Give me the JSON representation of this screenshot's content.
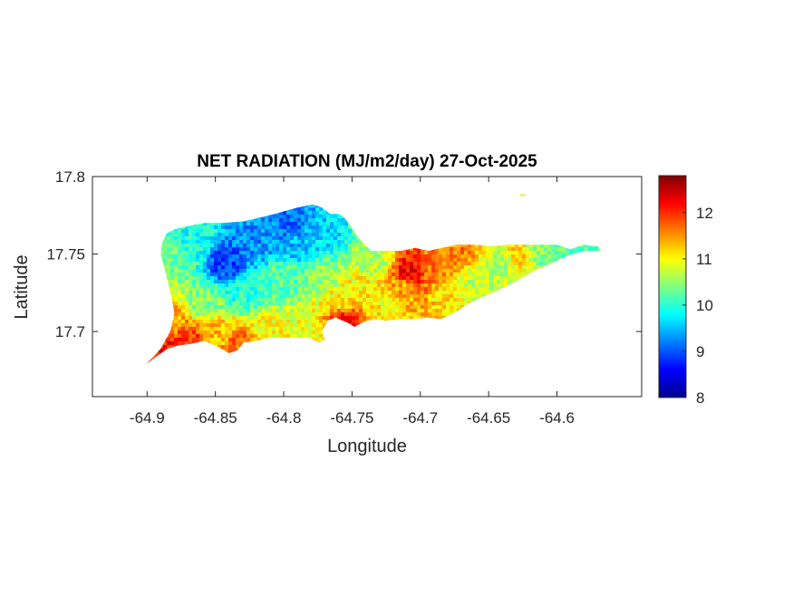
{
  "chart_data": {
    "type": "heatmap",
    "title": "NET RADIATION (MJ/m2/day) 27-Oct-2025",
    "xlabel": "Longitude",
    "ylabel": "Latitude",
    "xlim": [
      -64.94,
      -64.538
    ],
    "ylim": [
      17.658,
      17.8
    ],
    "xticks": [
      -64.9,
      -64.85,
      -64.8,
      -64.75,
      -64.7,
      -64.65,
      -64.6
    ],
    "yticks": [
      17.7,
      17.75,
      17.8
    ],
    "xtick_labels": [
      "-64.9",
      "-64.85",
      "-64.8",
      "-64.75",
      "-64.7",
      "-64.65",
      "-64.6"
    ],
    "ytick_labels": [
      "17.7",
      "17.75",
      "17.8"
    ],
    "colorbar": {
      "label": "",
      "range": [
        8,
        12.8
      ],
      "ticks": [
        8,
        9,
        10,
        11,
        12
      ],
      "tick_labels": [
        "8",
        "9",
        "10",
        "11",
        "12"
      ],
      "colormap": "jet",
      "colors": [
        "#00008f",
        "#0000ff",
        "#00ffff",
        "#ffff00",
        "#ff0000",
        "#800000"
      ]
    },
    "grid": false,
    "island_outline_lonlat": [
      [
        -64.901,
        17.679
      ],
      [
        -64.893,
        17.684
      ],
      [
        -64.885,
        17.689
      ],
      [
        -64.877,
        17.691
      ],
      [
        -64.868,
        17.692
      ],
      [
        -64.858,
        17.694
      ],
      [
        -64.848,
        17.69
      ],
      [
        -64.84,
        17.686
      ],
      [
        -64.834,
        17.688
      ],
      [
        -64.829,
        17.693
      ],
      [
        -64.82,
        17.694
      ],
      [
        -64.81,
        17.696
      ],
      [
        -64.8,
        17.696
      ],
      [
        -64.79,
        17.696
      ],
      [
        -64.781,
        17.696
      ],
      [
        -64.774,
        17.693
      ],
      [
        -64.77,
        17.695
      ],
      [
        -64.772,
        17.7
      ],
      [
        -64.768,
        17.707
      ],
      [
        -64.762,
        17.709
      ],
      [
        -64.754,
        17.706
      ],
      [
        -64.748,
        17.703
      ],
      [
        -64.742,
        17.706
      ],
      [
        -64.734,
        17.708
      ],
      [
        -64.725,
        17.707
      ],
      [
        -64.715,
        17.708
      ],
      [
        -64.705,
        17.708
      ],
      [
        -64.695,
        17.709
      ],
      [
        -64.685,
        17.708
      ],
      [
        -64.675,
        17.712
      ],
      [
        -64.665,
        17.718
      ],
      [
        -64.655,
        17.722
      ],
      [
        -64.645,
        17.726
      ],
      [
        -64.635,
        17.73
      ],
      [
        -64.625,
        17.735
      ],
      [
        -64.615,
        17.74
      ],
      [
        -64.604,
        17.744
      ],
      [
        -64.592,
        17.749
      ],
      [
        -64.58,
        17.752
      ],
      [
        -64.568,
        17.752
      ],
      [
        -64.57,
        17.755
      ],
      [
        -64.581,
        17.756
      ],
      [
        -64.59,
        17.753
      ],
      [
        -64.6,
        17.756
      ],
      [
        -64.612,
        17.756
      ],
      [
        -64.624,
        17.756
      ],
      [
        -64.636,
        17.756
      ],
      [
        -64.648,
        17.755
      ],
      [
        -64.66,
        17.756
      ],
      [
        -64.674,
        17.756
      ],
      [
        -64.684,
        17.754
      ],
      [
        -64.694,
        17.752
      ],
      [
        -64.704,
        17.754
      ],
      [
        -64.714,
        17.752
      ],
      [
        -64.726,
        17.752
      ],
      [
        -64.736,
        17.752
      ],
      [
        -64.745,
        17.76
      ],
      [
        -64.751,
        17.768
      ],
      [
        -64.756,
        17.774
      ],
      [
        -64.76,
        17.776
      ],
      [
        -64.766,
        17.776
      ],
      [
        -64.772,
        17.78
      ],
      [
        -64.779,
        17.782
      ],
      [
        -64.79,
        17.78
      ],
      [
        -64.802,
        17.777
      ],
      [
        -64.815,
        17.774
      ],
      [
        -64.83,
        17.771
      ],
      [
        -64.845,
        17.77
      ],
      [
        -64.858,
        17.77
      ],
      [
        -64.87,
        17.768
      ],
      [
        -64.88,
        17.766
      ],
      [
        -64.886,
        17.763
      ],
      [
        -64.889,
        17.757
      ],
      [
        -64.89,
        17.75
      ],
      [
        -64.888,
        17.743
      ],
      [
        -64.885,
        17.733
      ],
      [
        -64.882,
        17.722
      ],
      [
        -64.88,
        17.712
      ],
      [
        -64.883,
        17.7
      ],
      [
        -64.89,
        17.689
      ],
      [
        -64.896,
        17.683
      ]
    ],
    "islet_lonlat": [
      -64.625,
      17.788
    ],
    "value_centers": [
      {
        "lon": -64.88,
        "lat": 17.748,
        "value": 10.3
      },
      {
        "lon": -64.865,
        "lat": 17.76,
        "value": 9.9
      },
      {
        "lon": -64.842,
        "lat": 17.744,
        "value": 8.9
      },
      {
        "lon": -64.818,
        "lat": 17.758,
        "value": 9.3
      },
      {
        "lon": -64.795,
        "lat": 17.768,
        "value": 9.1
      },
      {
        "lon": -64.79,
        "lat": 17.756,
        "value": 9.5
      },
      {
        "lon": -64.77,
        "lat": 17.76,
        "value": 9.6
      },
      {
        "lon": -64.83,
        "lat": 17.725,
        "value": 10.0
      },
      {
        "lon": -64.8,
        "lat": 17.735,
        "value": 10.2
      },
      {
        "lon": -64.77,
        "lat": 17.735,
        "value": 10.5
      },
      {
        "lon": -64.76,
        "lat": 17.722,
        "value": 11.0
      },
      {
        "lon": -64.74,
        "lat": 17.728,
        "value": 11.1
      },
      {
        "lon": -64.735,
        "lat": 17.745,
        "value": 10.6
      },
      {
        "lon": -64.725,
        "lat": 17.718,
        "value": 11.0
      },
      {
        "lon": -64.712,
        "lat": 17.728,
        "value": 11.4
      },
      {
        "lon": -64.707,
        "lat": 17.737,
        "value": 12.3
      },
      {
        "lon": -64.69,
        "lat": 17.738,
        "value": 11.6
      },
      {
        "lon": -64.68,
        "lat": 17.725,
        "value": 11.1
      },
      {
        "lon": -64.66,
        "lat": 17.733,
        "value": 10.7
      },
      {
        "lon": -64.64,
        "lat": 17.744,
        "value": 10.6
      },
      {
        "lon": -64.63,
        "lat": 17.748,
        "value": 11.2
      },
      {
        "lon": -64.612,
        "lat": 17.75,
        "value": 10.5
      },
      {
        "lon": -64.59,
        "lat": 17.752,
        "value": 10.2
      },
      {
        "lon": -64.672,
        "lat": 17.752,
        "value": 11.6
      },
      {
        "lon": -64.755,
        "lat": 17.705,
        "value": 12.2
      },
      {
        "lon": -64.88,
        "lat": 17.708,
        "value": 11.4
      },
      {
        "lon": -64.888,
        "lat": 17.69,
        "value": 12.1
      },
      {
        "lon": -64.87,
        "lat": 17.694,
        "value": 12.0
      },
      {
        "lon": -64.848,
        "lat": 17.697,
        "value": 11.3
      },
      {
        "lon": -64.835,
        "lat": 17.691,
        "value": 11.7
      },
      {
        "lon": -64.81,
        "lat": 17.7,
        "value": 11.0
      },
      {
        "lon": -64.785,
        "lat": 17.7,
        "value": 10.9
      },
      {
        "lon": -64.86,
        "lat": 17.718,
        "value": 10.4
      }
    ]
  }
}
